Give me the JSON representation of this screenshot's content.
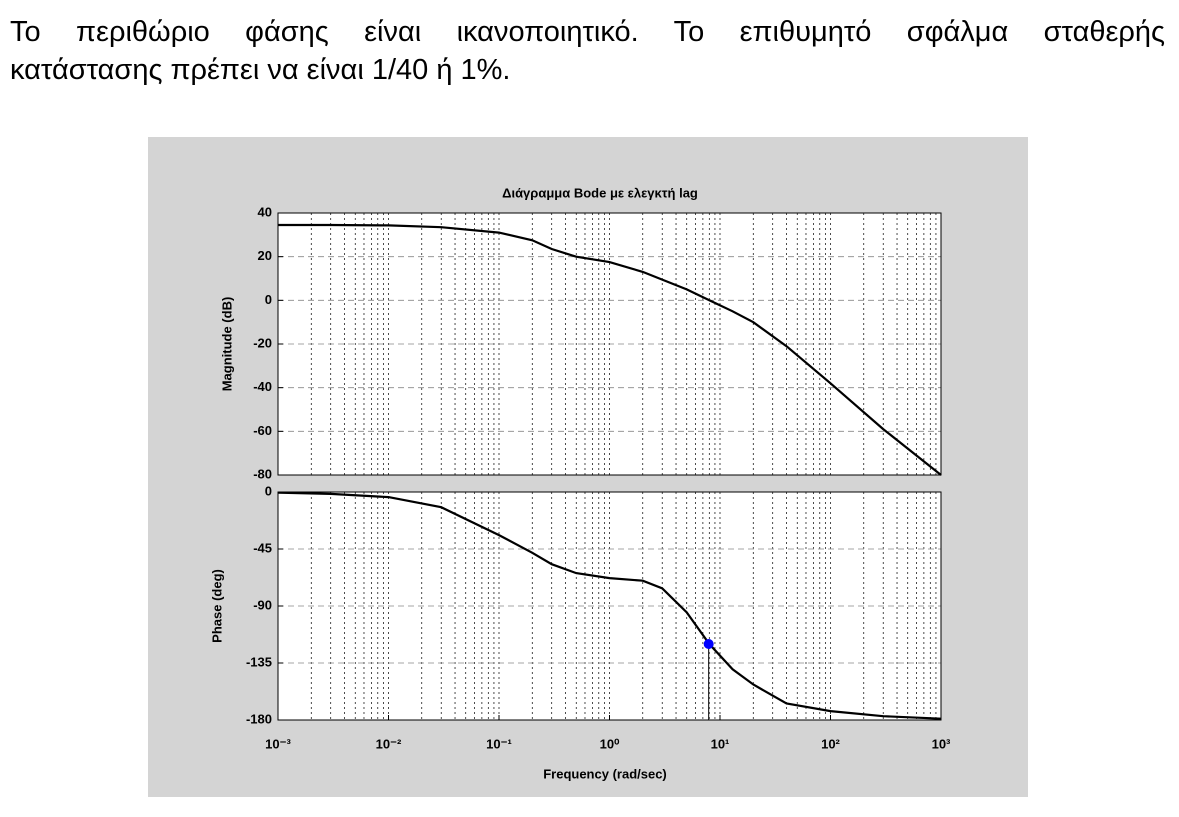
{
  "text": {
    "lines": [
      "Το περιθώριο φάσης είναι ικανοποιητικό. Το επιθυμητό σφάλμα σταθερής",
      "κατάστασης πρέπει να είναι 1/40 ή 1%."
    ]
  },
  "chart_data": [
    {
      "type": "line",
      "title": "Διάγραμμα Bode με ελεγκτή lag",
      "ylabel": "Magnitude (dB)",
      "x_scale": "log",
      "grid": true,
      "x": [
        0.001,
        0.003,
        0.01,
        0.03,
        0.1,
        0.2,
        0.3,
        0.5,
        1,
        2,
        3,
        5,
        8,
        13,
        20,
        40,
        100,
        300,
        1000
      ],
      "series": [
        {
          "color": "#000000",
          "values": [
            34.5,
            34.5,
            34.3,
            33.5,
            31,
            27.5,
            23.5,
            20,
            17.5,
            13,
            9.5,
            5,
            0,
            -5,
            -10,
            -21,
            -38,
            -59,
            -80
          ]
        }
      ],
      "xlim": [
        0.001,
        1000
      ],
      "ylim": [
        -80,
        40
      ],
      "yticks": [
        -80,
        -60,
        -40,
        -20,
        0,
        20,
        40
      ]
    },
    {
      "type": "line",
      "ylabel": "Phase (deg)",
      "xlabel": "Frequency  (rad/sec)",
      "x_scale": "log",
      "grid": true,
      "x": [
        0.001,
        0.003,
        0.01,
        0.03,
        0.1,
        0.2,
        0.3,
        0.5,
        1,
        2,
        3,
        5,
        8,
        13,
        20,
        40,
        100,
        300,
        1000
      ],
      "series": [
        {
          "color": "#000000",
          "values": [
            -0.5,
            -1.5,
            -4,
            -12,
            -34,
            -48,
            -57,
            -64,
            -68,
            -70,
            -76,
            -95,
            -120,
            -140,
            -152,
            -167,
            -173,
            -177,
            -179
          ]
        }
      ],
      "marker": {
        "x": 7.9,
        "y": -120,
        "color": "#0000ff"
      },
      "xlim": [
        0.001,
        1000
      ],
      "ylim": [
        -180,
        0
      ],
      "yticks": [
        -180,
        -135,
        -90,
        -45,
        0
      ],
      "xticks": [
        {
          "value": 0.001,
          "label": "10⁻³"
        },
        {
          "value": 0.01,
          "label": "10⁻²"
        },
        {
          "value": 0.1,
          "label": "10⁻¹"
        },
        {
          "value": 1,
          "label": "10⁰"
        },
        {
          "value": 10,
          "label": "10¹"
        },
        {
          "value": 100,
          "label": "10²"
        },
        {
          "value": 1000,
          "label": "10³"
        }
      ]
    }
  ]
}
